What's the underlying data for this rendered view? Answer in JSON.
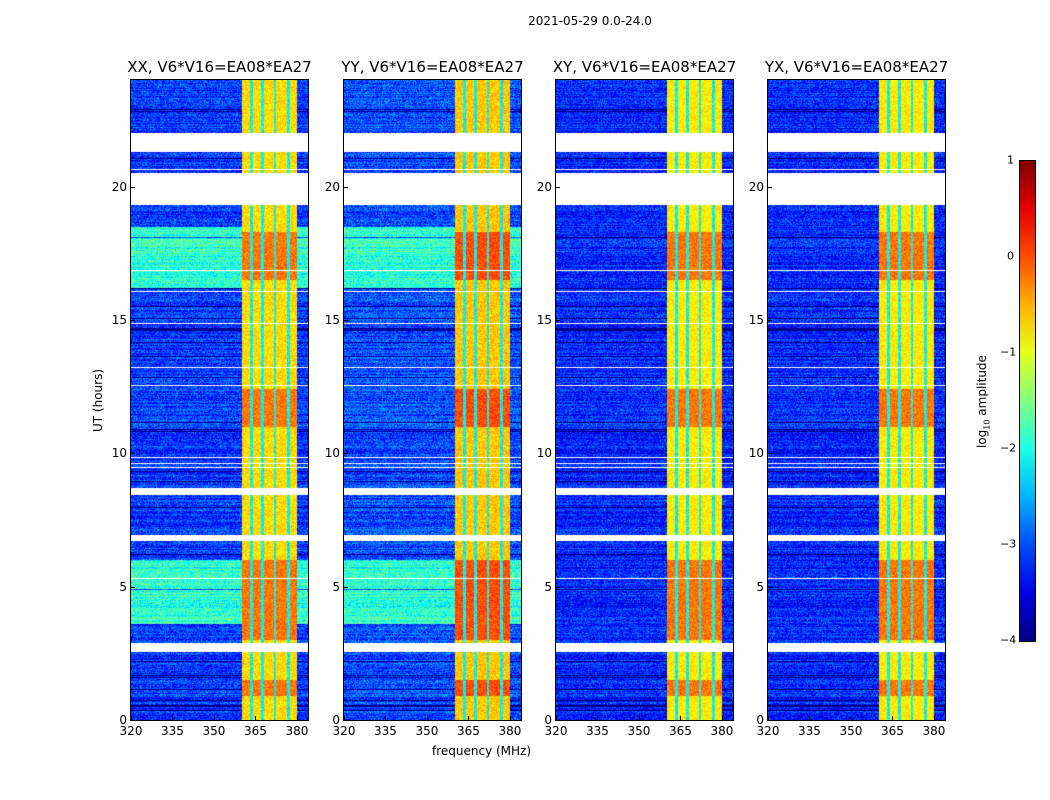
{
  "chart_data": {
    "type": "heatmap",
    "title": "2021-05-29 0.0-24.0",
    "xlabel": "frequency (MHz)",
    "ylabel": "UT (hours)",
    "xlim": [
      320,
      384
    ],
    "ylim": [
      0,
      24
    ],
    "xticks": [
      320,
      335,
      350,
      365,
      380
    ],
    "yticks": [
      0,
      5,
      10,
      15,
      20
    ],
    "colorbar": {
      "label_main": "log",
      "label_sub": "10",
      "label_rest": " amplitude",
      "range": [
        -4,
        1
      ],
      "ticks": [
        1,
        0,
        -1,
        -2,
        -3,
        -4
      ],
      "tick_labels": [
        "1",
        "0",
        "−1",
        "−2",
        "−3",
        "−4"
      ],
      "colormap": "jet"
    },
    "flagged_hours": [
      [
        2.55,
        2.9
      ],
      [
        6.7,
        6.95
      ],
      [
        8.45,
        8.7
      ],
      [
        19.3,
        20.5
      ],
      [
        21.3,
        22.0
      ]
    ],
    "rfi_band_mhz": [
      360,
      380
    ],
    "rfi_separators_mhz": [
      363.5,
      367.5,
      372,
      377
    ],
    "strong_hours": [
      [
        0.9,
        1.5
      ],
      [
        3.0,
        6.0
      ],
      [
        11.0,
        12.4
      ],
      [
        16.5,
        18.3
      ]
    ],
    "panels": [
      {
        "title": "XX, V6*V16=EA08*EA27",
        "base": -3.1,
        "band": -0.7,
        "strong_boost": 0.5,
        "green_rows": [
          [
            16.2,
            18.5
          ],
          [
            3.6,
            6.0
          ]
        ]
      },
      {
        "title": "YY, V6*V16=EA08*EA27",
        "base": -3.0,
        "band": -0.6,
        "strong_boost": 0.6,
        "green_rows": [
          [
            16.2,
            18.5
          ],
          [
            3.6,
            6.0
          ]
        ]
      },
      {
        "title": "XY, V6*V16=EA08*EA27",
        "base": -3.2,
        "band": -0.8,
        "strong_boost": 0.6,
        "green_rows": []
      },
      {
        "title": "YX, V6*V16=EA08*EA27",
        "base": -3.2,
        "band": -0.8,
        "strong_boost": 0.6,
        "green_rows": []
      }
    ]
  }
}
